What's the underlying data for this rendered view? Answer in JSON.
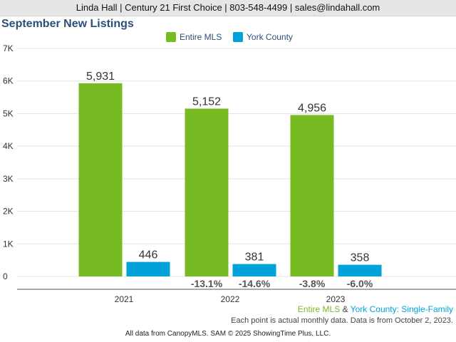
{
  "header": {
    "contact": "Linda Hall | Century 21 First Choice | 803-548-4499 | sales@lindahall.com"
  },
  "chart_data": {
    "type": "bar",
    "title": "September New Listings",
    "categories": [
      "2021",
      "2022",
      "2023"
    ],
    "series": [
      {
        "name": "Entire MLS",
        "color": "#77bb22",
        "values": [
          5931,
          5152,
          4956
        ],
        "value_labels": [
          "5,931",
          "5,152",
          "4,956"
        ],
        "change_labels": [
          "",
          "-13.1%",
          "-3.8%"
        ]
      },
      {
        "name": "York County",
        "color": "#00a2d9",
        "values": [
          446,
          381,
          358
        ],
        "value_labels": [
          "446",
          "381",
          "358"
        ],
        "change_labels": [
          "",
          "-14.6%",
          "-6.0%"
        ]
      }
    ],
    "ylim": [
      0,
      7000
    ],
    "yticks": [
      0,
      1000,
      2000,
      3000,
      4000,
      5000,
      6000,
      7000
    ],
    "ytick_labels": [
      "0",
      "1K",
      "2K",
      "3K",
      "4K",
      "5K",
      "6K",
      "7K"
    ],
    "grid": true,
    "legend_position": "top-center"
  },
  "footer": {
    "series_note": {
      "entire": "Entire MLS",
      "amp": " & ",
      "york": "York County",
      "suffix": ": Single-Family"
    },
    "data_note": "Each point is actual monthly data. Data is from October 2, 2023.",
    "source": "All data from CanopyMLS. SAM © 2025 ShowingTime Plus, LLC."
  }
}
